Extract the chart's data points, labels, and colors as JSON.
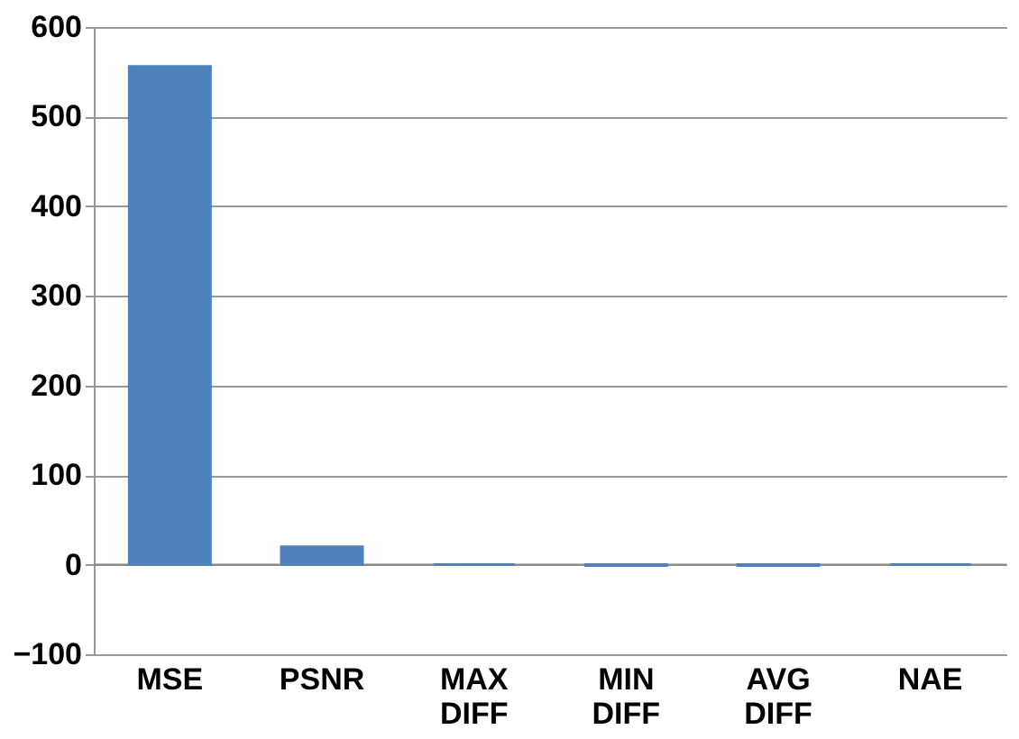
{
  "chart_data": {
    "type": "bar",
    "categories": [
      "MSE",
      "PSNR",
      "MAX DIFF",
      "MIN DIFF",
      "AVG DIFF",
      "NAE"
    ],
    "values": [
      556,
      20,
      0,
      -1,
      -1,
      0
    ],
    "color": "#4f81bd",
    "ylim": [
      -100,
      600
    ],
    "yticks": [
      -100,
      0,
      100,
      200,
      300,
      400,
      500,
      600
    ],
    "grid": "y"
  }
}
